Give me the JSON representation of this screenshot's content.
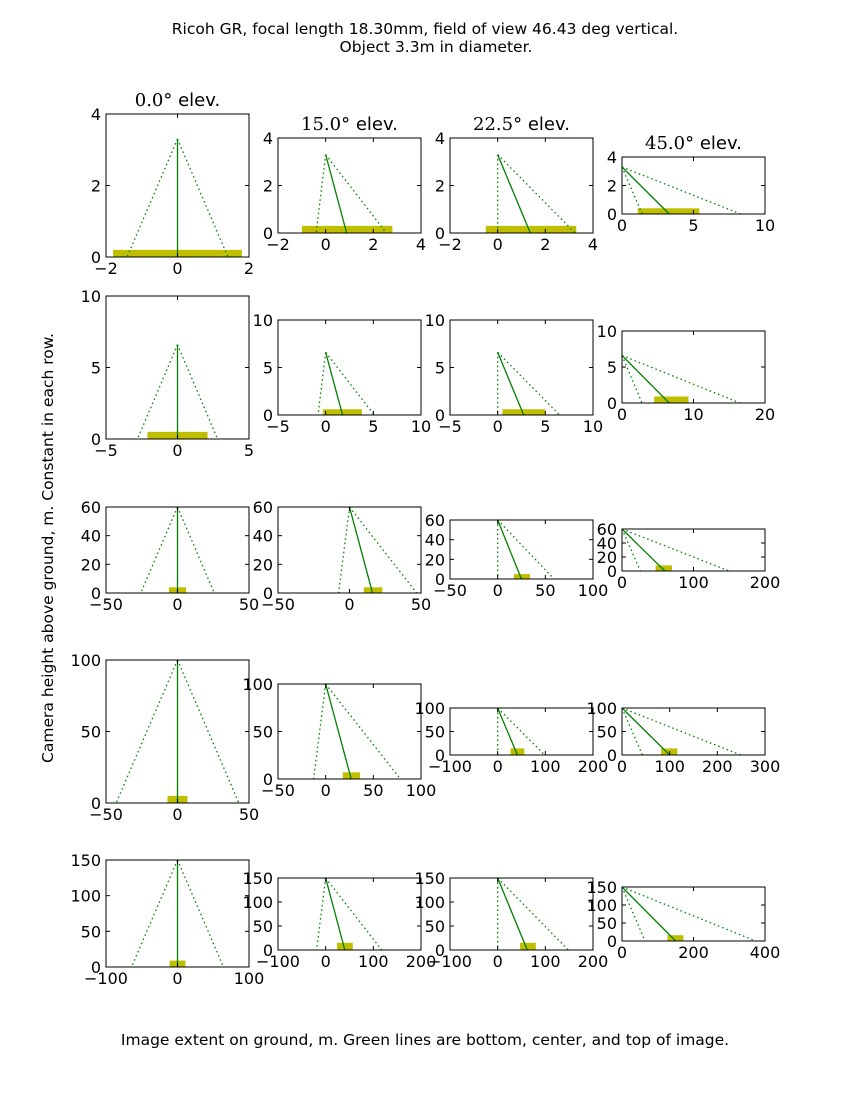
{
  "figure": {
    "title_line1": "Ricoh GR,  focal length 18.30mm, field of view 46.43 deg vertical.",
    "title_line2": "Object 3.3m in diameter.",
    "xlabel": "Image extent on ground, m. Green lines are bottom, center, and top of image.",
    "ylabel": "Camera height above ground, m. Constant in each row.",
    "column_titles": [
      {
        "value": "0.0",
        "degree": "°",
        "suffix": "elev."
      },
      {
        "value": "15.0",
        "degree": "°",
        "suffix": "elev."
      },
      {
        "value": "22.5",
        "degree": "°",
        "suffix": "elev."
      },
      {
        "value": "45.0",
        "degree": "°",
        "suffix": "elev."
      }
    ]
  },
  "colors": {
    "line": "#008000",
    "object": "#bfbf00",
    "axes": "#000000",
    "background": "#ffffff"
  },
  "chart_data": {
    "type": "line",
    "description": "Grid of 5 rows (camera heights) x 4 columns (elevation angles). Solid green line = image center ray, dotted green lines = bottom and top rays, yellow bar = object on ground.",
    "elevations_deg": [
      0.0,
      15.0,
      22.5,
      45.0
    ],
    "camera_heights_m": [
      3.3,
      6.6,
      60,
      100,
      150
    ],
    "object_diameter_m": 3.3,
    "fov_vertical_deg": 46.43,
    "panels": [
      {
        "row": 0,
        "col": 0,
        "xlim": [
          -2,
          2
        ],
        "ylim": [
          0,
          4
        ],
        "xticks": [
          "−2",
          "0",
          "2"
        ],
        "yticks": [
          "0",
          "2",
          "4"
        ],
        "height": 3.3,
        "bottom_x": -1.41,
        "center_x": 0,
        "top_x": 1.41,
        "object": [
          -1.8,
          1.8
        ],
        "object_h": 0.2
      },
      {
        "row": 0,
        "col": 1,
        "xlim": [
          -2,
          4
        ],
        "ylim": [
          0,
          4
        ],
        "xticks": [
          "−2",
          "0",
          "2",
          "4"
        ],
        "yticks": [
          "0",
          "2",
          "4"
        ],
        "height": 3.3,
        "bottom_x": -0.4,
        "center_x": 0.88,
        "top_x": 2.55,
        "object": [
          -1.0,
          2.8
        ],
        "object_h": 0.3
      },
      {
        "row": 0,
        "col": 2,
        "xlim": [
          -2,
          4
        ],
        "ylim": [
          0,
          4
        ],
        "xticks": [
          "−2",
          "0",
          "2",
          "4"
        ],
        "yticks": [
          "0",
          "2",
          "4"
        ],
        "height": 3.3,
        "bottom_x": 0.0,
        "center_x": 1.37,
        "top_x": 3.25,
        "object": [
          -0.5,
          3.3
        ],
        "object_h": 0.3
      },
      {
        "row": 0,
        "col": 3,
        "xlim": [
          0,
          10
        ],
        "ylim": [
          0,
          4
        ],
        "xticks": [
          "0",
          "5",
          "10"
        ],
        "yticks": [
          "0",
          "2",
          "4"
        ],
        "height": 3.3,
        "bottom_x": 1.41,
        "center_x": 3.3,
        "top_x": 8.3,
        "object": [
          1.1,
          5.4
        ],
        "object_h": 0.4
      },
      {
        "row": 1,
        "col": 0,
        "xlim": [
          -5,
          5
        ],
        "ylim": [
          0,
          10
        ],
        "xticks": [
          "−5",
          "0",
          "5"
        ],
        "yticks": [
          "0",
          "5",
          "10"
        ],
        "height": 6.6,
        "bottom_x": -2.8,
        "center_x": 0,
        "top_x": 2.8,
        "object": [
          -2.1,
          2.1
        ],
        "object_h": 0.5
      },
      {
        "row": 1,
        "col": 1,
        "xlim": [
          -5,
          10
        ],
        "ylim": [
          0,
          10
        ],
        "xticks": [
          "−5",
          "0",
          "5",
          "10"
        ],
        "yticks": [
          "0",
          "5",
          "10"
        ],
        "height": 6.6,
        "bottom_x": -0.8,
        "center_x": 1.77,
        "top_x": 5.1,
        "object": [
          -0.3,
          3.8
        ],
        "object_h": 0.6
      },
      {
        "row": 1,
        "col": 2,
        "xlim": [
          -5,
          10
        ],
        "ylim": [
          0,
          10
        ],
        "xticks": [
          "−5",
          "0",
          "5",
          "10"
        ],
        "yticks": [
          "0",
          "5",
          "10"
        ],
        "height": 6.6,
        "bottom_x": 0.0,
        "center_x": 2.73,
        "top_x": 6.5,
        "object": [
          0.5,
          5.0
        ],
        "object_h": 0.6
      },
      {
        "row": 1,
        "col": 3,
        "xlim": [
          0,
          20
        ],
        "ylim": [
          0,
          10
        ],
        "xticks": [
          "0",
          "10",
          "20"
        ],
        "yticks": [
          "0",
          "5",
          "10"
        ],
        "height": 6.6,
        "bottom_x": 2.8,
        "center_x": 6.6,
        "top_x": 16.5,
        "object": [
          4.5,
          9.3
        ],
        "object_h": 0.9
      },
      {
        "row": 2,
        "col": 0,
        "xlim": [
          -50,
          50
        ],
        "ylim": [
          0,
          60
        ],
        "xticks": [
          "−50",
          "0",
          "50"
        ],
        "yticks": [
          "0",
          "20",
          "40",
          "60"
        ],
        "height": 60,
        "bottom_x": -25.7,
        "center_x": 0,
        "top_x": 25.7,
        "object": [
          -6,
          6
        ],
        "object_h": 4
      },
      {
        "row": 2,
        "col": 1,
        "xlim": [
          -50,
          50
        ],
        "ylim": [
          0,
          60
        ],
        "xticks": [
          "−50",
          "0",
          "50"
        ],
        "yticks": [
          "0",
          "20",
          "40",
          "60"
        ],
        "height": 60,
        "bottom_x": -7.6,
        "center_x": 16.1,
        "top_x": 47.0,
        "object": [
          10,
          23
        ],
        "object_h": 4
      },
      {
        "row": 2,
        "col": 2,
        "xlim": [
          -50,
          100
        ],
        "ylim": [
          0,
          60
        ],
        "xticks": [
          "−50",
          "0",
          "50",
          "100"
        ],
        "yticks": [
          "0",
          "20",
          "40",
          "60"
        ],
        "height": 60,
        "bottom_x": 0.0,
        "center_x": 24.9,
        "top_x": 59.2,
        "object": [
          17,
          34
        ],
        "object_h": 5
      },
      {
        "row": 2,
        "col": 3,
        "xlim": [
          0,
          200
        ],
        "ylim": [
          0,
          60
        ],
        "xticks": [
          "0",
          "100",
          "200"
        ],
        "yticks": [
          "0",
          "20",
          "40",
          "60"
        ],
        "height": 60,
        "bottom_x": 25.7,
        "center_x": 60,
        "top_x": 150,
        "object": [
          47,
          70
        ],
        "object_h": 8
      },
      {
        "row": 3,
        "col": 0,
        "xlim": [
          -50,
          50
        ],
        "ylim": [
          0,
          100
        ],
        "xticks": [
          "−50",
          "0",
          "50"
        ],
        "yticks": [
          "0",
          "50",
          "100"
        ],
        "height": 100,
        "bottom_x": -42.9,
        "center_x": 0,
        "top_x": 42.9,
        "object": [
          -7,
          7
        ],
        "object_h": 5
      },
      {
        "row": 3,
        "col": 1,
        "xlim": [
          -50,
          100
        ],
        "ylim": [
          0,
          100
        ],
        "xticks": [
          "−50",
          "0",
          "50",
          "100"
        ],
        "yticks": [
          "0",
          "50",
          "100"
        ],
        "height": 100,
        "bottom_x": -12.7,
        "center_x": 26.8,
        "top_x": 78.4,
        "object": [
          18,
          36
        ],
        "object_h": 7
      },
      {
        "row": 3,
        "col": 2,
        "xlim": [
          -100,
          200
        ],
        "ylim": [
          0,
          100
        ],
        "xticks": [
          "−100",
          "0",
          "100",
          "200"
        ],
        "yticks": [
          "0",
          "50",
          "100"
        ],
        "height": 100,
        "bottom_x": 0.0,
        "center_x": 41.4,
        "top_x": 98.7,
        "object": [
          27,
          56
        ],
        "object_h": 14
      },
      {
        "row": 3,
        "col": 3,
        "xlim": [
          0,
          300
        ],
        "ylim": [
          0,
          100
        ],
        "xticks": [
          "0",
          "100",
          "200",
          "300"
        ],
        "yticks": [
          "0",
          "50",
          "100"
        ],
        "height": 100,
        "bottom_x": 42.9,
        "center_x": 100,
        "top_x": 249,
        "object": [
          82,
          116
        ],
        "object_h": 14
      },
      {
        "row": 4,
        "col": 0,
        "xlim": [
          -100,
          100
        ],
        "ylim": [
          0,
          150
        ],
        "xticks": [
          "−100",
          "0",
          "100"
        ],
        "yticks": [
          "0",
          "50",
          "100",
          "150"
        ],
        "height": 150,
        "bottom_x": -64.3,
        "center_x": 0,
        "top_x": 64.3,
        "object": [
          -11,
          11
        ],
        "object_h": 9
      },
      {
        "row": 4,
        "col": 1,
        "xlim": [
          -100,
          200
        ],
        "ylim": [
          0,
          150
        ],
        "xticks": [
          "−100",
          "0",
          "100",
          "200"
        ],
        "yticks": [
          "0",
          "50",
          "100",
          "150"
        ],
        "height": 150,
        "bottom_x": -19.1,
        "center_x": 40.2,
        "top_x": 117.6,
        "object": [
          24,
          57
        ],
        "object_h": 15
      },
      {
        "row": 4,
        "col": 2,
        "xlim": [
          -100,
          200
        ],
        "ylim": [
          0,
          150
        ],
        "xticks": [
          "−100",
          "0",
          "100",
          "200"
        ],
        "yticks": [
          "0",
          "50",
          "100",
          "150"
        ],
        "height": 150,
        "bottom_x": 0.0,
        "center_x": 62.1,
        "top_x": 148.1,
        "object": [
          47,
          80
        ],
        "object_h": 15
      },
      {
        "row": 4,
        "col": 3,
        "xlim": [
          0,
          400
        ],
        "ylim": [
          0,
          150
        ],
        "xticks": [
          "0",
          "200",
          "400"
        ],
        "yticks": [
          "0",
          "50",
          "100",
          "150"
        ],
        "height": 150,
        "bottom_x": 64.3,
        "center_x": 150,
        "top_x": 374,
        "object": [
          127,
          172
        ],
        "object_h": 16
      }
    ]
  }
}
